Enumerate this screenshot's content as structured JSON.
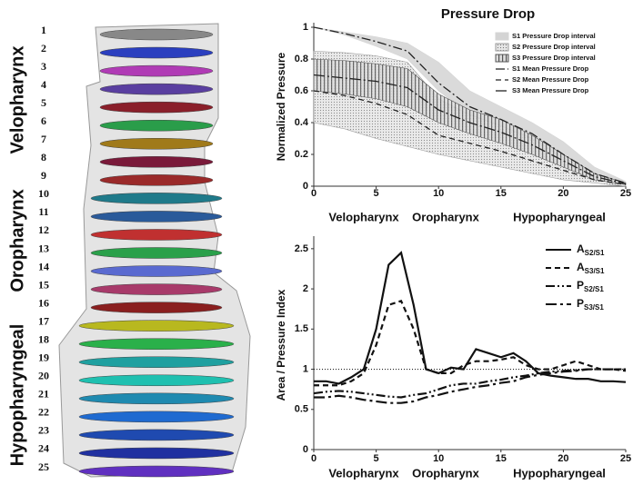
{
  "anatomy": {
    "slices": [
      1,
      2,
      3,
      4,
      5,
      6,
      7,
      8,
      9,
      10,
      11,
      12,
      13,
      14,
      15,
      16,
      17,
      18,
      19,
      20,
      21,
      22,
      23,
      24,
      25
    ],
    "regions": [
      "Velopharynx",
      "Oropharynx",
      "Hypopharyngeal"
    ]
  },
  "chart_data": [
    {
      "type": "band-line",
      "title": "Pressure Drop",
      "y_label": "Normalized Pressure",
      "x_regions": [
        "Velopharynx",
        "Oropharynx",
        "Hypopharyngeal"
      ],
      "x": [
        0,
        2.5,
        5,
        7.5,
        10,
        12.5,
        15,
        17.5,
        20,
        22.5,
        25
      ],
      "xlim": [
        0,
        25
      ],
      "xticks": [
        0,
        5,
        10,
        15,
        20,
        25
      ],
      "ylim": [
        0,
        1
      ],
      "yticks": [
        0,
        0.2,
        0.4,
        0.6,
        0.8,
        1
      ],
      "bands": [
        {
          "name": "S1 Pressure Drop interval",
          "pattern": "solid",
          "color": "#d4d4d4",
          "upper": [
            1,
            0.97,
            0.94,
            0.9,
            0.78,
            0.6,
            0.5,
            0.4,
            0.28,
            0.12,
            0.03
          ],
          "lower": [
            1,
            0.95,
            0.88,
            0.8,
            0.6,
            0.45,
            0.38,
            0.28,
            0.15,
            0.05,
            0.01
          ]
        },
        {
          "name": "S2 Pressure Drop interval",
          "pattern": "dots",
          "color": "#9a9a9a",
          "upper": [
            0.85,
            0.84,
            0.82,
            0.78,
            0.55,
            0.45,
            0.38,
            0.3,
            0.18,
            0.07,
            0.02
          ],
          "lower": [
            0.4,
            0.36,
            0.3,
            0.25,
            0.2,
            0.16,
            0.12,
            0.08,
            0.04,
            0.02,
            0
          ]
        },
        {
          "name": "S3 Pressure Drop interval",
          "pattern": "stripes",
          "color": "#555555",
          "upper": [
            0.8,
            0.79,
            0.77,
            0.74,
            0.58,
            0.48,
            0.42,
            0.32,
            0.2,
            0.08,
            0.02
          ],
          "lower": [
            0.6,
            0.58,
            0.55,
            0.5,
            0.4,
            0.33,
            0.27,
            0.2,
            0.12,
            0.04,
            0.01
          ]
        }
      ],
      "series": [
        {
          "name": "S1 Mean Pressure Drop",
          "color": "#222222",
          "dash": "10 3 2 3",
          "values": [
            1,
            0.96,
            0.91,
            0.85,
            0.65,
            0.5,
            0.42,
            0.33,
            0.2,
            0.08,
            0.02
          ]
        },
        {
          "name": "S2 Mean Pressure Drop",
          "color": "#222222",
          "dash": "6 4",
          "values": [
            0.6,
            0.57,
            0.52,
            0.45,
            0.32,
            0.27,
            0.22,
            0.16,
            0.1,
            0.04,
            0.01
          ]
        },
        {
          "name": "S3 Mean Pressure Drop",
          "color": "#222222",
          "dash": "12 3 2 3",
          "values": [
            0.7,
            0.68,
            0.66,
            0.62,
            0.48,
            0.4,
            0.34,
            0.26,
            0.16,
            0.06,
            0.015
          ]
        }
      ]
    },
    {
      "type": "line",
      "y_label": "Area / Pressure Index",
      "x_regions": [
        "Velopharynx",
        "Oropharynx",
        "Hypopharyngeal"
      ],
      "x": [
        0,
        1,
        2,
        3,
        4,
        5,
        6,
        7,
        8,
        9,
        10,
        11,
        12,
        13,
        14,
        15,
        16,
        17,
        18,
        19,
        20,
        21,
        22,
        23,
        24,
        25
      ],
      "xlim": [
        0,
        25
      ],
      "xticks": [
        0,
        5,
        10,
        15,
        20,
        25
      ],
      "ylim": [
        0,
        2.6
      ],
      "yticks": [
        0,
        0.5,
        1,
        1.5,
        2,
        2.5
      ],
      "reference_line": 1,
      "series": [
        {
          "name": "A",
          "name_sub": "S2/S1",
          "color": "#111111",
          "dash": "none",
          "values": [
            0.85,
            0.85,
            0.82,
            0.9,
            1.0,
            1.5,
            2.3,
            2.45,
            1.8,
            1.0,
            0.95,
            1.02,
            1.0,
            1.25,
            1.2,
            1.15,
            1.2,
            1.1,
            0.95,
            0.92,
            0.9,
            0.88,
            0.88,
            0.85,
            0.85,
            0.84
          ]
        },
        {
          "name": "A",
          "name_sub": "S3/S1",
          "color": "#111111",
          "dash": "6 4",
          "values": [
            0.8,
            0.8,
            0.8,
            0.85,
            0.95,
            1.3,
            1.8,
            1.85,
            1.5,
            1.0,
            0.95,
            0.95,
            1.05,
            1.1,
            1.1,
            1.12,
            1.15,
            1.05,
            1.0,
            1.0,
            1.05,
            1.1,
            1.05,
            1.0,
            1.0,
            0.98
          ]
        },
        {
          "name": "P",
          "name_sub": "S2/S1",
          "color": "#111111",
          "dash": "10 3 2 3 2 3",
          "values": [
            0.7,
            0.72,
            0.73,
            0.72,
            0.7,
            0.68,
            0.66,
            0.65,
            0.68,
            0.7,
            0.75,
            0.8,
            0.82,
            0.82,
            0.85,
            0.87,
            0.9,
            0.92,
            0.95,
            0.97,
            0.98,
            0.99,
            1.0,
            1.0,
            1.0,
            1.0
          ]
        },
        {
          "name": "P",
          "name_sub": "S3/S1",
          "color": "#111111",
          "dash": "12 4 3 4",
          "values": [
            0.65,
            0.65,
            0.67,
            0.65,
            0.62,
            0.6,
            0.58,
            0.58,
            0.6,
            0.65,
            0.68,
            0.72,
            0.75,
            0.78,
            0.8,
            0.83,
            0.85,
            0.9,
            0.93,
            0.95,
            0.97,
            0.98,
            1.0,
            1.0,
            1.0,
            1.0
          ]
        }
      ]
    }
  ]
}
